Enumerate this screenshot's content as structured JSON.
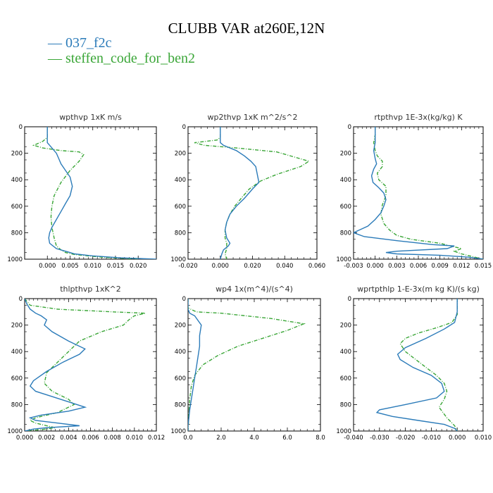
{
  "page_title": "CLUBB VAR at260E,12N",
  "legend": [
    {
      "label": "037_f2c",
      "color": "#2b7bb9"
    },
    {
      "label": "steffen_code_for_ben2",
      "color": "#3aa637"
    }
  ],
  "chart_data": [
    {
      "type": "line",
      "title": "wpthvp  1xK m/s",
      "xlim": [
        -0.005,
        0.024
      ],
      "xticks": [
        0.0,
        0.005,
        0.01,
        0.015,
        0.02
      ],
      "xtick_labels": [
        "0.000",
        "0.005",
        "0.010",
        "0.015",
        "0.020"
      ],
      "ylim": [
        1000,
        0
      ],
      "yticks": [
        0,
        200,
        400,
        600,
        800,
        1000
      ],
      "series": [
        {
          "x": [
            0.0,
            0.0,
            0.0,
            0.0005,
            0.001,
            0.002,
            0.0025,
            0.003,
            0.004,
            0.005,
            0.0055,
            0.005,
            0.004,
            0.003,
            0.002,
            0.001,
            0.0005,
            0.0003,
            0.0005,
            0.002,
            0.004,
            0.005,
            0.006,
            0.01,
            0.016,
            0.024
          ],
          "y": [
            0,
            60,
            120,
            140,
            160,
            200,
            240,
            280,
            330,
            380,
            450,
            520,
            580,
            640,
            700,
            760,
            800,
            840,
            880,
            920,
            940,
            950,
            960,
            975,
            990,
            1000
          ]
        },
        {
          "x": [
            0.0,
            0.0,
            -0.001,
            -0.003,
            -0.001,
            0.003,
            0.007,
            0.008,
            0.007,
            0.005,
            0.003,
            0.0015,
            0.001,
            0.0008,
            0.001,
            0.0015,
            0.002,
            0.003,
            0.004,
            0.006,
            0.012,
            0.02
          ],
          "y": [
            0,
            80,
            110,
            140,
            160,
            180,
            190,
            210,
            260,
            330,
            420,
            520,
            600,
            680,
            760,
            840,
            900,
            930,
            950,
            965,
            985,
            1000
          ]
        }
      ]
    },
    {
      "type": "line",
      "title": "wp2thvp  1xK m^2/s^2",
      "xlim": [
        -0.02,
        0.06
      ],
      "xticks": [
        -0.02,
        0.0,
        0.02,
        0.04,
        0.06
      ],
      "xtick_labels": [
        "-0.020",
        "0.000",
        "0.020",
        "0.040",
        "0.060"
      ],
      "ylim": [
        1000,
        0
      ],
      "yticks": [
        0,
        200,
        400,
        600,
        800,
        1000
      ],
      "series": [
        {
          "x": [
            0.0,
            0.0,
            0.0,
            0.002,
            0.006,
            0.01,
            0.015,
            0.019,
            0.022,
            0.024,
            0.02,
            0.015,
            0.01,
            0.006,
            0.004,
            0.003,
            0.004,
            0.006,
            0.005,
            0.002,
            0.001,
            0.0
          ],
          "y": [
            0,
            80,
            120,
            140,
            160,
            180,
            220,
            260,
            300,
            420,
            470,
            540,
            600,
            660,
            720,
            780,
            840,
            880,
            900,
            930,
            960,
            1000
          ]
        },
        {
          "x": [
            0.0,
            0.0,
            -0.002,
            -0.016,
            -0.01,
            0.01,
            0.035,
            0.055,
            0.05,
            0.035,
            0.025,
            0.018,
            0.013,
            0.009,
            0.006,
            0.004,
            0.003,
            0.003,
            0.004,
            0.004,
            0.003,
            0.004
          ],
          "y": [
            0,
            80,
            100,
            120,
            140,
            160,
            190,
            260,
            300,
            360,
            410,
            470,
            540,
            600,
            660,
            720,
            780,
            840,
            880,
            920,
            960,
            1000
          ]
        }
      ]
    },
    {
      "type": "line",
      "title": "rtpthvp  1E-3x(kg/kg) K",
      "xlim": [
        -0.003,
        0.015
      ],
      "xticks": [
        -0.003,
        0.0,
        0.003,
        0.006,
        0.009,
        0.012,
        0.015
      ],
      "xtick_labels": [
        "-0.003",
        "0.000",
        "0.003",
        "0.006",
        "0.009",
        "0.012",
        "0.015"
      ],
      "ylim": [
        1000,
        0
      ],
      "yticks": [
        0,
        200,
        400,
        600,
        800,
        1000
      ],
      "series": [
        {
          "x": [
            0.0,
            0.0,
            0.0,
            -0.0002,
            0.0,
            0.0002,
            -0.0002,
            -0.0005,
            -0.0003,
            0.0005,
            0.0012,
            0.0015,
            0.0012,
            0.0008,
            0.0,
            -0.001,
            -0.003,
            -0.0015,
            0.003,
            0.008,
            0.011,
            0.01,
            0.003,
            0.0015,
            0.003,
            0.009,
            0.013,
            0.015
          ],
          "y": [
            0,
            60,
            120,
            180,
            240,
            280,
            320,
            370,
            420,
            460,
            500,
            550,
            600,
            650,
            700,
            750,
            800,
            830,
            860,
            890,
            900,
            920,
            940,
            950,
            960,
            970,
            985,
            1000
          ]
        },
        {
          "x": [
            0.0,
            0.0,
            -0.0002,
            0.0,
            0.0003,
            0.001,
            0.001,
            0.0003,
            0.0005,
            0.0015,
            0.0015,
            0.001,
            0.0008,
            0.0012,
            0.002,
            0.003,
            0.005,
            0.009,
            0.012,
            0.011,
            0.012,
            0.015
          ],
          "y": [
            0,
            60,
            120,
            180,
            220,
            260,
            300,
            350,
            400,
            450,
            520,
            590,
            660,
            730,
            780,
            820,
            850,
            880,
            920,
            940,
            960,
            1000
          ]
        }
      ]
    },
    {
      "type": "line",
      "title": "thlpthvp  1xK^2",
      "xlim": [
        0.0,
        0.012
      ],
      "xticks": [
        0.0,
        0.002,
        0.004,
        0.006,
        0.008,
        0.01,
        0.012
      ],
      "xtick_labels": [
        "0.000",
        "0.002",
        "0.004",
        "0.006",
        "0.008",
        "0.010",
        "0.012"
      ],
      "ylim": [
        1000,
        0
      ],
      "yticks": [
        0,
        200,
        400,
        600,
        800,
        1000
      ],
      "series": [
        {
          "x": [
            0.0,
            0.0002,
            0.0005,
            0.001,
            0.0015,
            0.002,
            0.0018,
            0.0025,
            0.004,
            0.0055,
            0.005,
            0.0035,
            0.002,
            0.0008,
            0.0005,
            0.001,
            0.0025,
            0.004,
            0.0055,
            0.004,
            0.0015,
            0.0005,
            0.001,
            0.003,
            0.005,
            0.002,
            0.0008,
            0.0003,
            0.0
          ],
          "y": [
            0,
            40,
            80,
            110,
            130,
            160,
            200,
            250,
            320,
            380,
            420,
            480,
            550,
            620,
            660,
            700,
            740,
            780,
            820,
            850,
            880,
            900,
            920,
            940,
            960,
            975,
            985,
            995,
            1000
          ]
        },
        {
          "x": [
            0.0,
            0.0005,
            0.003,
            0.008,
            0.011,
            0.01,
            0.0095,
            0.009,
            0.007,
            0.005,
            0.004,
            0.003,
            0.002,
            0.0018,
            0.0025,
            0.004,
            0.0045,
            0.003,
            0.001,
            0.0005,
            0.001,
            0.002,
            0.0028,
            0.0015,
            0.0005,
            0.0
          ],
          "y": [
            0,
            50,
            80,
            100,
            110,
            130,
            160,
            200,
            250,
            320,
            400,
            480,
            560,
            640,
            700,
            760,
            800,
            860,
            900,
            920,
            940,
            960,
            975,
            990,
            995,
            1000
          ]
        }
      ]
    },
    {
      "type": "line",
      "title": "wp4  1x(m^4)/(s^4)",
      "xlim": [
        0.0,
        8.0
      ],
      "xticks": [
        0.0,
        2.0,
        4.0,
        6.0,
        8.0
      ],
      "xtick_labels": [
        "0.0",
        "2.0",
        "4.0",
        "6.0",
        "8.0"
      ],
      "ylim": [
        1000,
        0
      ],
      "yticks": [
        0,
        200,
        400,
        600,
        800,
        1000
      ],
      "series": [
        {
          "x": [
            0.0,
            0.0,
            0.1,
            0.4,
            0.8,
            0.7,
            0.7,
            0.6,
            0.5,
            0.4,
            0.3,
            0.2,
            0.1,
            0.05,
            0.0,
            0.0
          ],
          "y": [
            0,
            80,
            110,
            130,
            200,
            280,
            360,
            440,
            520,
            600,
            680,
            760,
            840,
            900,
            960,
            1000
          ]
        },
        {
          "x": [
            0.0,
            0.0,
            0.5,
            2.0,
            5.0,
            7.0,
            6.0,
            4.5,
            3.0,
            1.8,
            0.9,
            0.4,
            0.2,
            0.1,
            0.05,
            0.0
          ],
          "y": [
            0,
            70,
            100,
            110,
            150,
            190,
            240,
            300,
            360,
            430,
            500,
            580,
            660,
            760,
            860,
            1000
          ]
        }
      ]
    },
    {
      "type": "line",
      "title": "wprtpthlp  1-E-3x(m kg K)/(s kg)",
      "xlim": [
        -0.04,
        0.01
      ],
      "xticks": [
        -0.04,
        -0.03,
        -0.02,
        -0.01,
        0.0,
        0.01
      ],
      "xtick_labels": [
        "-0.040",
        "-0.030",
        "-0.020",
        "-0.010",
        "0.000",
        "0.010"
      ],
      "ylim": [
        1000,
        0
      ],
      "yticks": [
        0,
        200,
        400,
        600,
        800,
        1000
      ],
      "series": [
        {
          "x": [
            0.0,
            0.0,
            -0.001,
            -0.005,
            -0.012,
            -0.02,
            -0.023,
            -0.022,
            -0.017,
            -0.01,
            -0.006,
            -0.005,
            -0.008,
            -0.02,
            -0.03,
            -0.031,
            -0.025,
            -0.015,
            -0.005,
            -0.001,
            0.0
          ],
          "y": [
            0,
            100,
            180,
            230,
            300,
            370,
            420,
            460,
            520,
            580,
            640,
            700,
            750,
            800,
            840,
            860,
            890,
            920,
            950,
            980,
            1000
          ]
        },
        {
          "x": [
            0.0,
            0.0,
            -0.002,
            -0.008,
            -0.015,
            -0.02,
            -0.022,
            -0.02,
            -0.016,
            -0.012,
            -0.008,
            -0.005,
            -0.004,
            -0.005,
            -0.007,
            -0.004,
            -0.001,
            0.0
          ],
          "y": [
            0,
            120,
            180,
            220,
            260,
            300,
            340,
            400,
            460,
            520,
            580,
            640,
            700,
            760,
            820,
            900,
            960,
            1000
          ]
        }
      ]
    }
  ]
}
